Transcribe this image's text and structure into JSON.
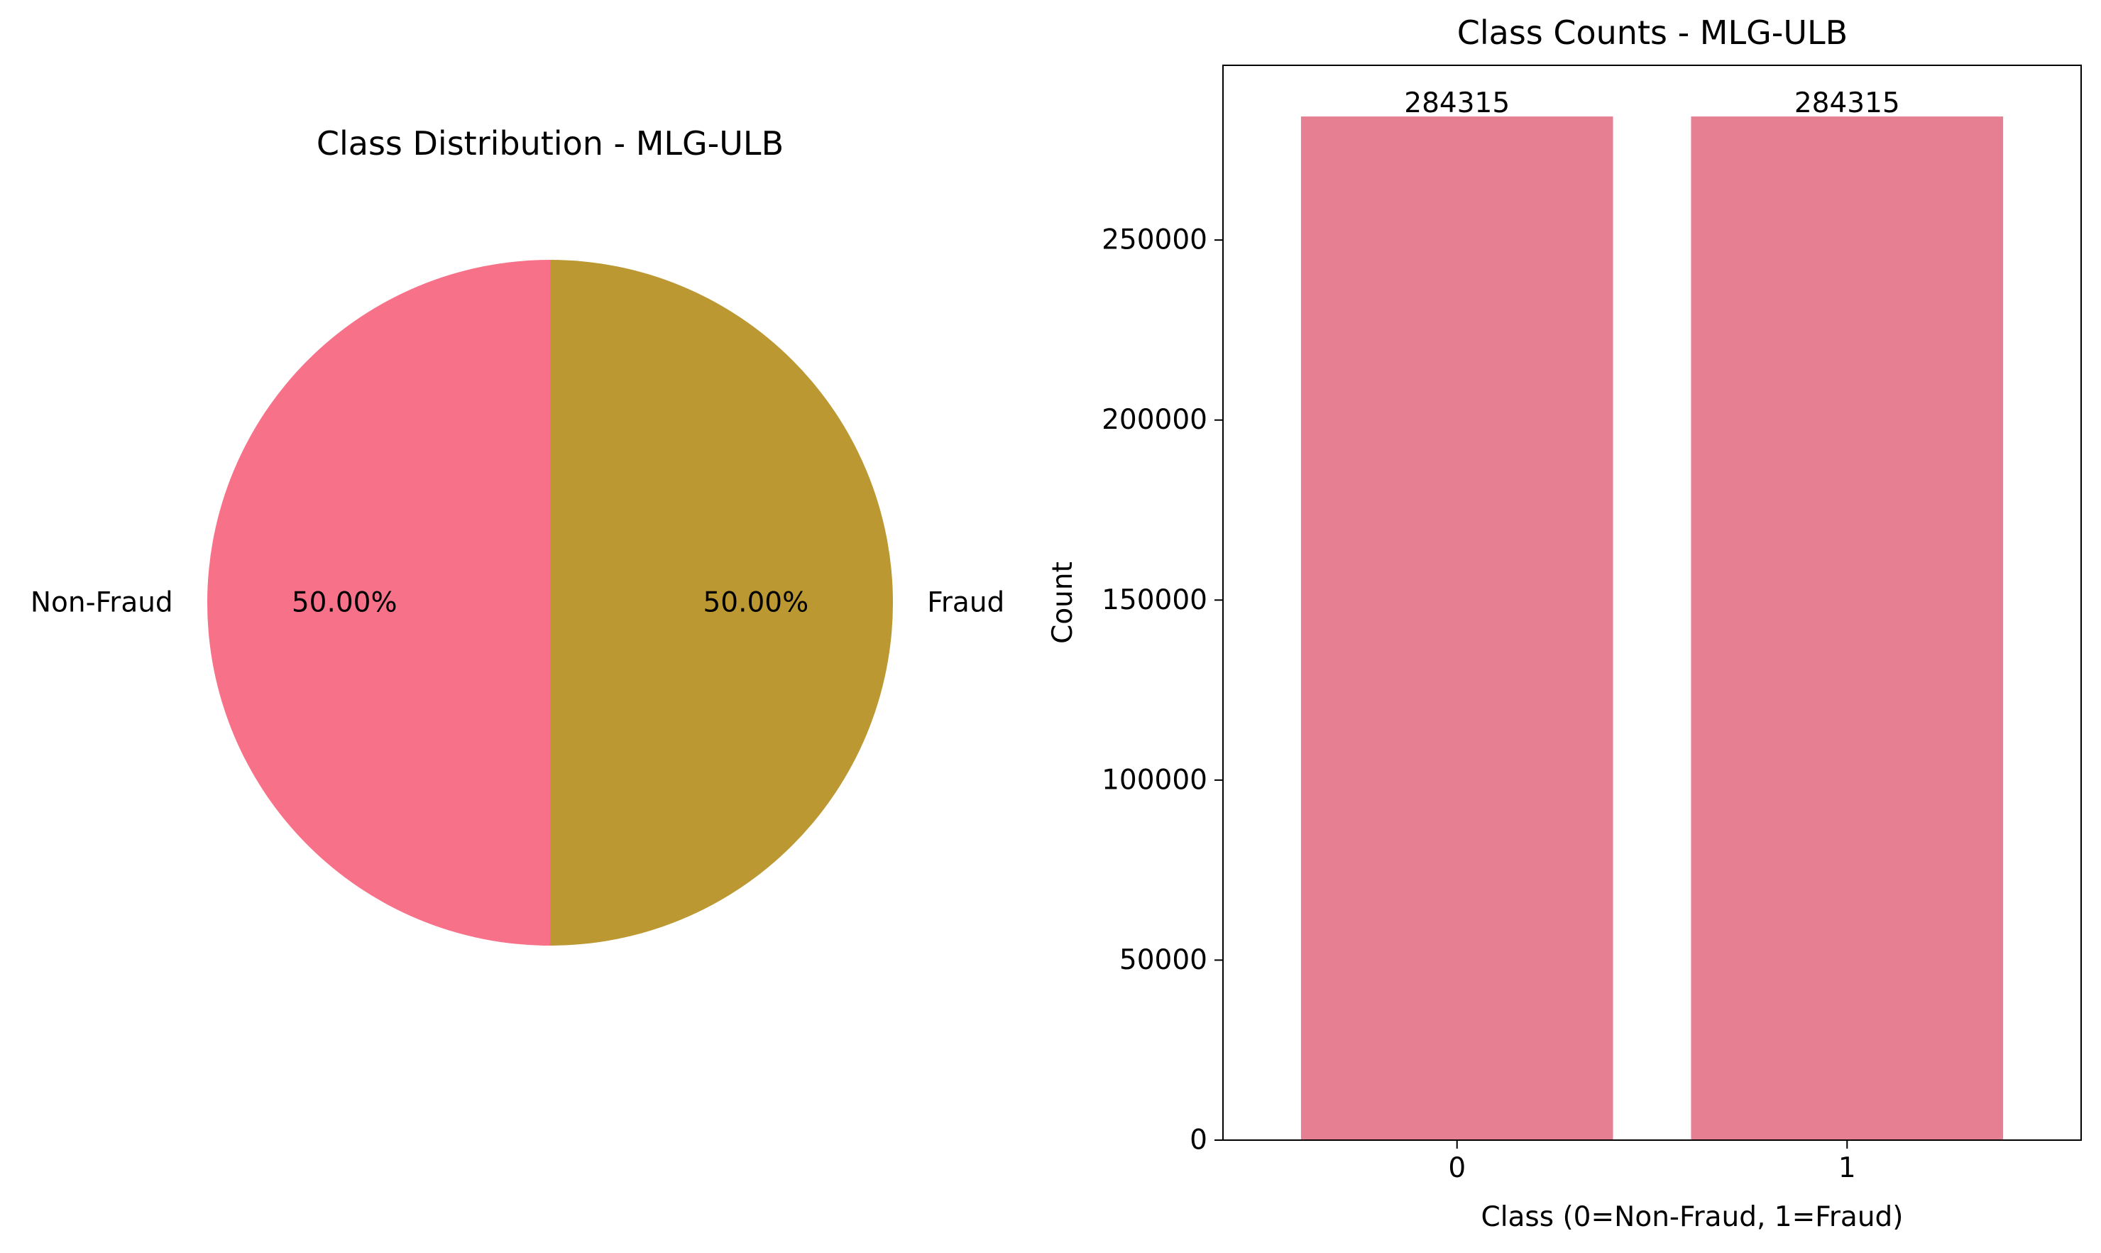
{
  "chart_data": [
    {
      "type": "pie",
      "title": "Class Distribution - MLG-ULB",
      "slices": [
        {
          "label": "Non-Fraud",
          "value": 50.0,
          "pct_label": "50.00%",
          "color": "#f77189"
        },
        {
          "label": "Fraud",
          "value": 50.0,
          "pct_label": "50.00%",
          "color": "#bb9832"
        }
      ],
      "start_angle_deg": 90
    },
    {
      "type": "bar",
      "title": "Class Counts - MLG-ULB",
      "xlabel": "Class (0=Non-Fraud, 1=Fraud)",
      "ylabel": "Count",
      "categories": [
        "0",
        "1"
      ],
      "values": [
        284315,
        284315
      ],
      "value_labels": [
        "284315",
        "284315"
      ],
      "bar_color": "#e77f92",
      "ylim": [
        0,
        298531.75
      ],
      "yticks": [
        0,
        50000,
        100000,
        150000,
        200000,
        250000
      ],
      "ytick_labels": [
        "0",
        "50000",
        "100000",
        "150000",
        "200000",
        "250000"
      ],
      "grid": false,
      "legend": "none"
    }
  ]
}
